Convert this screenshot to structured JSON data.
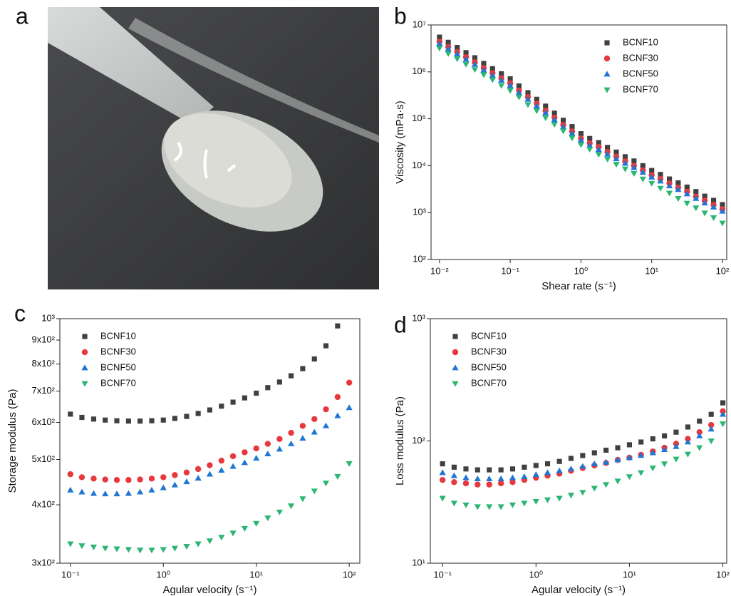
{
  "photo": {
    "panel_label": "a"
  },
  "chart_data": [
    {
      "type": "scatter",
      "panel_label": "b",
      "x_label": "Shear rate (s⁻¹)",
      "y_label": "Viscosity (mPa·s)",
      "xscale": "log",
      "yscale": "log",
      "legend": "upper right",
      "xlim": [
        0.0076,
        115
      ],
      "ylim": [
        100,
        10000000
      ],
      "xticks": [
        {
          "value": 0.01,
          "label": "10⁻²"
        },
        {
          "value": 0.1,
          "label": "10⁻¹"
        },
        {
          "value": 1,
          "label": "10⁰"
        },
        {
          "value": 10,
          "label": "10¹"
        },
        {
          "value": 100,
          "label": "10²"
        }
      ],
      "yticks": [
        {
          "value": 100,
          "label": "10²"
        },
        {
          "value": 1000,
          "label": "10³"
        },
        {
          "value": 10000,
          "label": "10⁴"
        },
        {
          "value": 100000,
          "label": "10⁵"
        },
        {
          "value": 1000000,
          "label": "10⁶"
        },
        {
          "value": 10000000,
          "label": "10⁷"
        }
      ],
      "x": [
        0.01,
        0.0133,
        0.0178,
        0.0237,
        0.0316,
        0.0422,
        0.0562,
        0.075,
        0.1,
        0.133,
        0.178,
        0.237,
        0.316,
        0.422,
        0.562,
        0.75,
        1,
        1.33,
        1.78,
        2.37,
        3.16,
        4.22,
        5.62,
        7.5,
        10,
        13.3,
        17.8,
        23.7,
        31.6,
        42.2,
        56.2,
        75,
        100
      ],
      "series": [
        {
          "name": "BCNF10",
          "color": "#404040",
          "marker": "square",
          "values": [
            5500000.0,
            4270000.0,
            3310000.0,
            2570000.0,
            2000000.0,
            1510000.0,
            1170000.0,
            910000.0,
            710000.0,
            500000.0,
            360000.0,
            260000.0,
            186000.0,
            132000.0,
            93000.0,
            68000.0,
            48000.0,
            38000.0,
            31000.0,
            24500.0,
            19500.0,
            15500.0,
            12600.0,
            10000.0,
            7900.0,
            6500.0,
            5200.0,
            4300.0,
            3500.0,
            2800.0,
            2240.0,
            1820.0,
            1480.0
          ]
        },
        {
          "name": "BCNF30",
          "color": "#e8383d",
          "marker": "circle",
          "values": [
            4400000.0,
            3400000.0,
            2650000.0,
            2060000.0,
            1600000.0,
            1210000.0,
            940000.0,
            730000.0,
            570000.0,
            400000.0,
            290000.0,
            210000.0,
            149000.0,
            106000.0,
            74000.0,
            54000.0,
            38000.0,
            30000.0,
            25000.0,
            19600.0,
            15600.0,
            12400.0,
            10000.0,
            8000.0,
            6300.0,
            5200.0,
            4200.0,
            3400.0,
            2800.0,
            2200.0,
            1800.0,
            1460.0,
            1180.0
          ]
        },
        {
          "name": "BCNF50",
          "color": "#1f77d4",
          "marker": "triangle-up",
          "values": [
            4000000.0,
            3100000.0,
            2400000.0,
            1850000.0,
            1440000.0,
            1090000.0,
            840000.0,
            660000.0,
            510000.0,
            360000.0,
            260000.0,
            187000.0,
            134000.0,
            95000.0,
            67000.0,
            49000.0,
            35000.0,
            27000.0,
            22000.0,
            17600.0,
            14000.0,
            11200.0,
            9100.0,
            7200.0,
            5700.0,
            4700.0,
            3700.0,
            3100.0,
            2500.0,
            2000.0,
            1600.0,
            1310.0,
            1070.0
          ]
        },
        {
          "name": "BCNF70",
          "color": "#2bb673",
          "marker": "triangle-down",
          "values": [
            3200000.0,
            2450000.0,
            1900000.0,
            1450000.0,
            1120000.0,
            870000.0,
            680000.0,
            510000.0,
            400000.0,
            290000.0,
            200000.0,
            148000.0,
            105000.0,
            76000.0,
            55000.0,
            39000.0,
            28000.0,
            22400.0,
            17400.0,
            13800.0,
            10700.0,
            8500.0,
            6800.0,
            5200.0,
            4200.0,
            3300.0,
            2600.0,
            2000.0,
            1580.0,
            1260.0,
            980,
            780,
            600
          ]
        }
      ]
    },
    {
      "type": "scatter",
      "panel_label": "c",
      "x_label": "Agular velocity (s⁻¹)",
      "y_label": "Storage modulus (Pa)",
      "xscale": "log",
      "yscale": "log",
      "legend": "upper left",
      "xlim": [
        0.077,
        130
      ],
      "ylim": [
        300,
        1000
      ],
      "xticks": [
        {
          "value": 0.1,
          "label": "10⁻¹"
        },
        {
          "value": 1,
          "label": "10⁰"
        },
        {
          "value": 10,
          "label": "10¹"
        },
        {
          "value": 100,
          "label": "10²"
        }
      ],
      "yticks": [
        {
          "value": 300,
          "label": "3x10²"
        },
        {
          "value": 400,
          "label": "4x10²"
        },
        {
          "value": 500,
          "label": "5x10²"
        },
        {
          "value": 600,
          "label": "6x10²"
        },
        {
          "value": 700,
          "label": "7x10²"
        },
        {
          "value": 800,
          "label": "8x10²"
        },
        {
          "value": 900,
          "label": "9x10²"
        },
        {
          "value": 1000,
          "label": "10³"
        }
      ],
      "x": [
        0.1,
        0.133,
        0.178,
        0.237,
        0.316,
        0.422,
        0.562,
        0.75,
        1,
        1.33,
        1.78,
        2.37,
        3.16,
        4.22,
        5.62,
        7.5,
        10,
        13.3,
        17.8,
        23.7,
        31.6,
        42.2,
        56.2,
        75,
        100
      ],
      "series": [
        {
          "name": "BCNF10",
          "color": "#404040",
          "marker": "square",
          "values": [
            625,
            615,
            610,
            607,
            605,
            604,
            604,
            605,
            607,
            612,
            618,
            627,
            638,
            650,
            663,
            677,
            693,
            712,
            732,
            755,
            782,
            820,
            875,
            965,
            null
          ]
        },
        {
          "name": "BCNF30",
          "color": "#e8383d",
          "marker": "circle",
          "values": [
            465,
            458,
            455,
            453,
            452,
            452,
            453,
            455,
            458,
            463,
            469,
            477,
            486,
            497,
            508,
            518,
            528,
            540,
            553,
            570,
            590,
            610,
            640,
            680,
            730
          ]
        },
        {
          "name": "BCNF50",
          "color": "#1f77d4",
          "marker": "triangle-up",
          "values": [
            430,
            426,
            423,
            422,
            422,
            423,
            426,
            430,
            435,
            441,
            448,
            456,
            465,
            474,
            483,
            492,
            503,
            514,
            526,
            540,
            555,
            572,
            590,
            620,
            645
          ]
        },
        {
          "name": "BCNF70",
          "color": "#2bb673",
          "marker": "triangle-down",
          "values": [
            330,
            327,
            325,
            323,
            322,
            321,
            320,
            320,
            321,
            323,
            326,
            330,
            335,
            341,
            348,
            356,
            365,
            375,
            386,
            398,
            412,
            428,
            445,
            460,
            490
          ]
        }
      ]
    },
    {
      "type": "scatter",
      "panel_label": "d",
      "x_label": "Agular velocity (s⁻¹)",
      "y_label": "Loss modulus (Pa)",
      "xscale": "log",
      "yscale": "log",
      "legend": "upper left",
      "xlim": [
        0.074,
        110
      ],
      "ylim": [
        10,
        1000
      ],
      "xticks": [
        {
          "value": 0.1,
          "label": "10⁻¹"
        },
        {
          "value": 1,
          "label": "10⁰"
        },
        {
          "value": 10,
          "label": "10¹"
        },
        {
          "value": 100,
          "label": "10²"
        }
      ],
      "yticks": [
        {
          "value": 10,
          "label": "10¹"
        },
        {
          "value": 100,
          "label": "10²"
        },
        {
          "value": 1000,
          "label": "10³"
        }
      ],
      "x": [
        0.1,
        0.133,
        0.178,
        0.237,
        0.316,
        0.422,
        0.562,
        0.75,
        1,
        1.33,
        1.78,
        2.37,
        3.16,
        4.22,
        5.62,
        7.5,
        10,
        13.3,
        17.8,
        23.7,
        31.6,
        42.2,
        56.2,
        75,
        100
      ],
      "series": [
        {
          "name": "BCNF10",
          "color": "#404040",
          "marker": "square",
          "values": [
            65,
            61,
            59,
            58,
            58,
            58,
            59,
            61,
            63,
            65,
            68,
            72,
            76,
            80,
            84,
            88,
            93,
            98,
            104,
            110,
            118,
            130,
            145,
            165,
            205
          ]
        },
        {
          "name": "BCNF30",
          "color": "#e8383d",
          "marker": "circle",
          "values": [
            48,
            46,
            45,
            44,
            44,
            45,
            46,
            48,
            50,
            52,
            54,
            57,
            60,
            63,
            66,
            70,
            73,
            77,
            82,
            88,
            95,
            104,
            118,
            135,
            175
          ]
        },
        {
          "name": "BCNF50",
          "color": "#1f77d4",
          "marker": "triangle-up",
          "values": [
            55,
            52,
            50,
            49,
            49,
            49,
            50,
            51,
            53,
            55,
            57,
            59,
            62,
            65,
            67,
            70,
            73,
            76,
            80,
            85,
            90,
            98,
            110,
            125,
            165
          ]
        },
        {
          "name": "BCNF70",
          "color": "#2bb673",
          "marker": "triangle-down",
          "values": [
            34,
            31,
            30,
            29,
            29,
            29,
            30,
            31,
            32,
            33,
            34,
            36,
            38,
            41,
            44,
            47,
            51,
            55,
            60,
            65,
            71,
            78,
            88,
            100,
            138
          ]
        }
      ]
    }
  ]
}
